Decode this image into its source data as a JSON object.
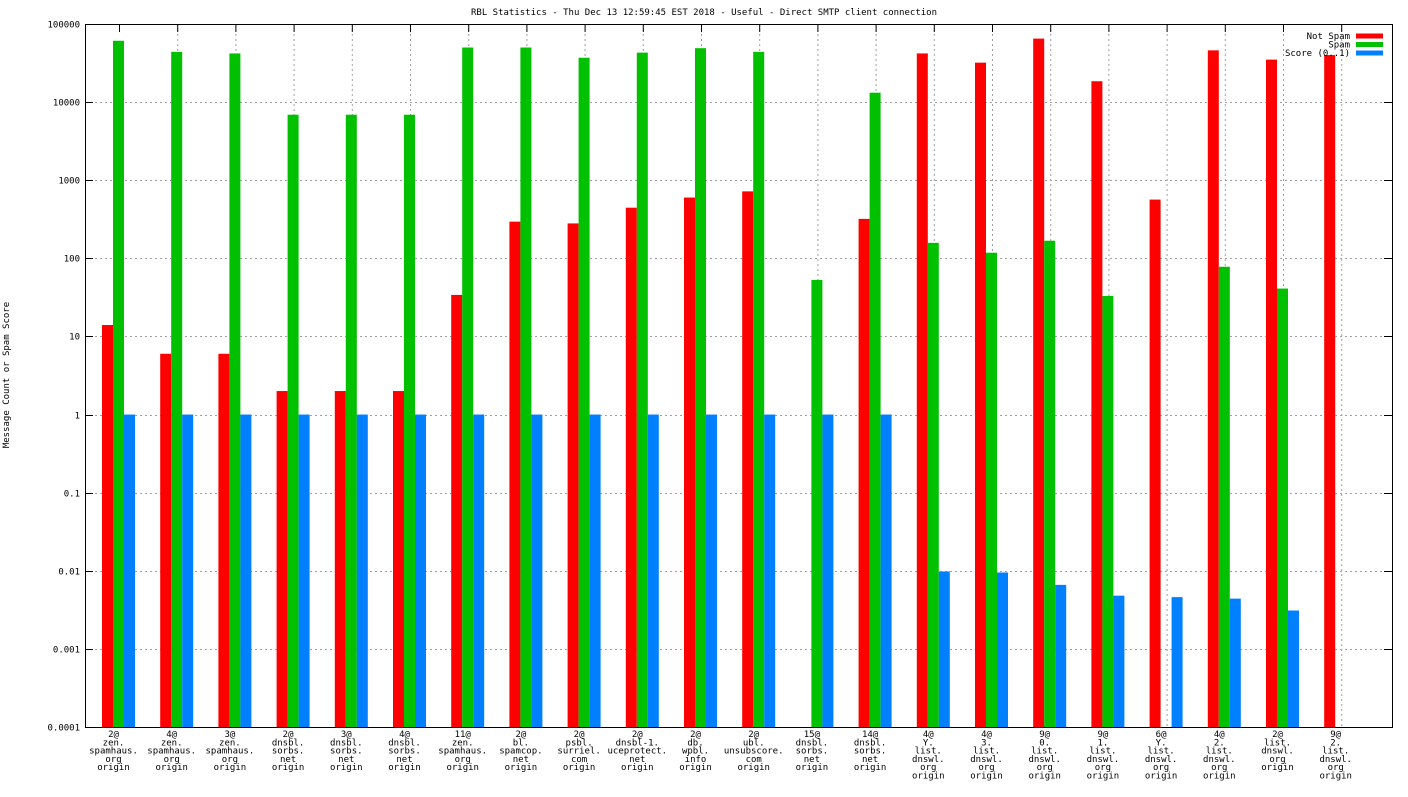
{
  "chart_data": {
    "type": "bar",
    "title": "RBL Statistics - Thu Dec 13 12:59:45 EST 2018 - Useful - Direct SMTP client connection",
    "xlabel": "",
    "ylabel": "Message Count or Spam Score",
    "yscale": "log",
    "ylim": [
      0.0001,
      100000
    ],
    "yticks": [
      "0.0001",
      "0.001",
      "0.01",
      "0.1",
      "1",
      "10",
      "100",
      "1000",
      "10000",
      "100000"
    ],
    "grid": true,
    "legend_position": "top-right",
    "categories": [
      [
        "2@",
        "zen.",
        "spamhaus.",
        "org",
        "origin"
      ],
      [
        "4@",
        "zen.",
        "spamhaus.",
        "org",
        "origin"
      ],
      [
        "3@",
        "zen.",
        "spamhaus.",
        "org",
        "origin"
      ],
      [
        "2@",
        "dnsbl.",
        "sorbs.",
        "net",
        "origin"
      ],
      [
        "3@",
        "dnsbl.",
        "sorbs.",
        "net",
        "origin"
      ],
      [
        "4@",
        "dnsbl.",
        "sorbs.",
        "net",
        "origin"
      ],
      [
        "11@",
        "zen.",
        "spamhaus.",
        "org",
        "origin"
      ],
      [
        "2@",
        "bl.",
        "spamcop.",
        "net",
        "origin"
      ],
      [
        "2@",
        "psbl.",
        "surriel.",
        "com",
        "origin"
      ],
      [
        "2@",
        "dnsbl-1.",
        "uceprotect.",
        "net",
        "origin"
      ],
      [
        "2@",
        "db.",
        "wpbl.",
        "info",
        "origin"
      ],
      [
        "2@",
        "ubl.",
        "unsubscore.",
        "com",
        "origin"
      ],
      [
        "15@",
        "dnsbl.",
        "sorbs.",
        "net",
        "origin"
      ],
      [
        "14@",
        "dnsbl.",
        "sorbs.",
        "net",
        "origin"
      ],
      [
        "4@",
        "Y.",
        "list.",
        "dnswl.",
        "org",
        "origin"
      ],
      [
        "4@",
        "3.",
        "list.",
        "dnswl.",
        "org",
        "origin"
      ],
      [
        "9@",
        "0.",
        "list.",
        "dnswl.",
        "org",
        "origin"
      ],
      [
        "9@",
        "1.",
        "list.",
        "dnswl.",
        "org",
        "origin"
      ],
      [
        "6@",
        "Y.",
        "list.",
        "dnswl.",
        "org",
        "origin"
      ],
      [
        "4@",
        "2.",
        "list.",
        "dnswl.",
        "org",
        "origin"
      ],
      [
        "2@",
        "list.",
        "dnswl.",
        "org",
        "origin"
      ],
      [
        "9@",
        "2.",
        "list.",
        "dnswl.",
        "org",
        "origin"
      ]
    ],
    "series": [
      {
        "name": "Not Spam",
        "color": "#ff0000",
        "values": [
          14,
          6,
          6,
          2,
          2,
          2,
          34,
          295,
          280,
          445,
          600,
          720,
          null,
          320,
          42000,
          32000,
          65000,
          18500,
          565,
          46000,
          35000,
          40000
        ]
      },
      {
        "name": "Spam",
        "color": "#00c000",
        "values": [
          61000,
          44000,
          42000,
          6900,
          6900,
          6900,
          50000,
          50000,
          37000,
          43000,
          49000,
          44000,
          53,
          13200,
          158,
          118,
          168,
          33,
          null,
          78,
          41,
          null
        ]
      },
      {
        "name": "Score (0..1)",
        "color": "#0080ff",
        "values": [
          1,
          1,
          1,
          1,
          1,
          1,
          1,
          1,
          1,
          1,
          1,
          1,
          1,
          1,
          0.0098,
          0.0095,
          0.0066,
          0.0048,
          0.0046,
          0.0044,
          0.0031,
          null
        ]
      }
    ]
  }
}
